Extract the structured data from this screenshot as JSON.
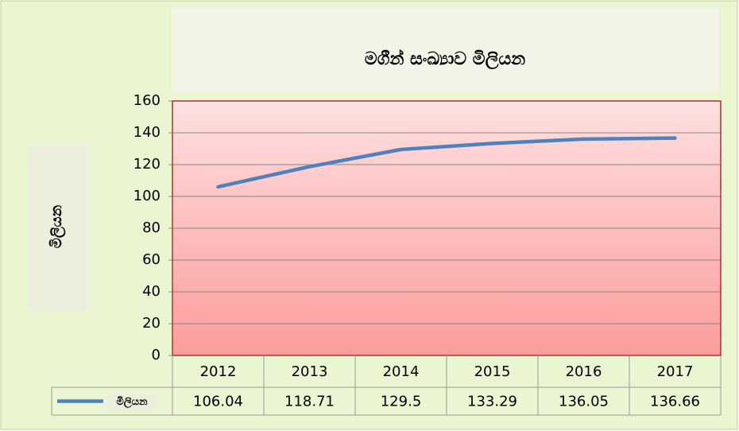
{
  "chart_data": {
    "type": "line",
    "title": "මගීන් සංඛ්‍යාව මිලියන",
    "y_label": "මිලියන",
    "categories": [
      "2012",
      "2013",
      "2014",
      "2015",
      "2016",
      "2017"
    ],
    "series": [
      {
        "name": "මිලියන",
        "color": "#4f81bd",
        "values": [
          106.04,
          118.71,
          129.5,
          133.29,
          136.05,
          136.66
        ]
      }
    ],
    "ylim": [
      0,
      160
    ],
    "yticks": [
      0,
      20,
      40,
      60,
      80,
      100,
      120,
      140,
      160
    ],
    "grid": true,
    "data_table": true
  }
}
